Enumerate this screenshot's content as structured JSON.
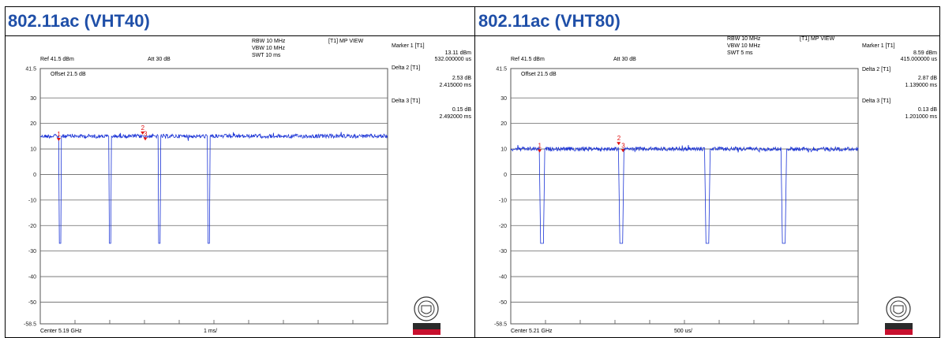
{
  "charts": [
    {
      "heading": "802.11ac (VHT40)",
      "rbw": "RBW 10 MHz",
      "vbw": "VBW 10 MHz",
      "swt": "SWT 10 ms",
      "mode": "[T1] MP VIEW",
      "ref": "Ref 41.5 dBm",
      "att": "Att 30 dB",
      "offset": "Offset 21.5 dB",
      "center": "Center 5.19 GHz",
      "div": "1 ms/",
      "markers": [
        {
          "label": "Marker 1 [T1]",
          "val1": "13.11 dBm",
          "val2": "532.000000 us"
        },
        {
          "label": "Delta 2 [T1]",
          "val1": "2.53 dB",
          "val2": "2.415000 ms"
        },
        {
          "label": "Delta 3 [T1]",
          "val1": "0.15 dB",
          "val2": "2.492000 ms"
        }
      ],
      "logo_text": "BUREAU VERITAS"
    },
    {
      "heading": "802.11ac (VHT80)",
      "rbw": "RBW 10 MHz",
      "vbw": "VBW 10 MHz",
      "swt": "SWT 5 ms",
      "mode": "[T1] MP VIEW",
      "ref": "Ref 41.5 dBm",
      "att": "Att 30 dB",
      "offset": "Offset 21.5 dB",
      "center": "Center 5.21 GHz",
      "div": "500 us/",
      "markers": [
        {
          "label": "Marker 1 [T1]",
          "val1": "8.59 dBm",
          "val2": "415.000000 us"
        },
        {
          "label": "Delta 2 [T1]",
          "val1": "2.87 dB",
          "val2": "1.139000 ms"
        },
        {
          "label": "Delta 3 [T1]",
          "val1": "0.13 dB",
          "val2": "1.201000 ms"
        }
      ],
      "logo_text": "BUREAU VERITAS"
    }
  ],
  "colors": {
    "heading": "#1f4fa8",
    "trace": "#1a33d6",
    "marker": "#e01010",
    "logo": "#c8102e"
  },
  "chart_data": [
    {
      "type": "line",
      "x_unit": "ms",
      "xlim": [
        0,
        10
      ],
      "ylim": [
        -58.5,
        41.5
      ],
      "yticks": [
        "41.5",
        "30",
        "20",
        "10",
        "0",
        "-10",
        "-20",
        "-30",
        "-40",
        "-50",
        "-58.5"
      ],
      "series": [
        {
          "points": [
            [
              0,
              15
            ],
            [
              0.53,
              15
            ],
            [
              0.55,
              -27
            ],
            [
              0.59,
              -27
            ],
            [
              0.61,
              15
            ],
            [
              1.97,
              15
            ],
            [
              1.99,
              -27
            ],
            [
              2.03,
              -27
            ],
            [
              2.05,
              15
            ],
            [
              3.39,
              15
            ],
            [
              3.41,
              -27
            ],
            [
              3.45,
              -27
            ],
            [
              3.47,
              15
            ],
            [
              4.81,
              15
            ],
            [
              4.83,
              -27
            ],
            [
              4.87,
              -27
            ],
            [
              4.89,
              15
            ],
            [
              6.25,
              15
            ],
            [
              10,
              15
            ]
          ]
        }
      ],
      "marker_points": [
        {
          "label": "1",
          "x": 0.532,
          "y": 13.1
        },
        {
          "label": "2",
          "x": 2.947,
          "y": 15.6
        },
        {
          "label": "3",
          "x": 3.024,
          "y": 13.3
        }
      ]
    },
    {
      "type": "line",
      "x_unit": "ms",
      "xlim": [
        0,
        5
      ],
      "ylim": [
        -58.5,
        41.5
      ],
      "yticks": [
        "41.5",
        "30",
        "20",
        "10",
        "0",
        "-10",
        "-20",
        "-30",
        "-40",
        "-50",
        "-58.5"
      ],
      "series": [
        {
          "points": [
            [
              0,
              10
            ],
            [
              0.41,
              10
            ],
            [
              0.43,
              -27
            ],
            [
              0.47,
              -27
            ],
            [
              0.49,
              10
            ],
            [
              1.55,
              10
            ],
            [
              1.57,
              -27
            ],
            [
              1.61,
              -27
            ],
            [
              1.63,
              10
            ],
            [
              2.79,
              10
            ],
            [
              2.81,
              -27
            ],
            [
              2.85,
              -27
            ],
            [
              2.87,
              10
            ],
            [
              3.89,
              10
            ],
            [
              3.91,
              -27
            ],
            [
              3.95,
              -27
            ],
            [
              3.97,
              10
            ],
            [
              5,
              10
            ]
          ]
        }
      ],
      "marker_points": [
        {
          "label": "1",
          "x": 0.415,
          "y": 8.6
        },
        {
          "label": "2",
          "x": 1.554,
          "y": 11.5
        },
        {
          "label": "3",
          "x": 1.616,
          "y": 8.7
        }
      ]
    }
  ]
}
